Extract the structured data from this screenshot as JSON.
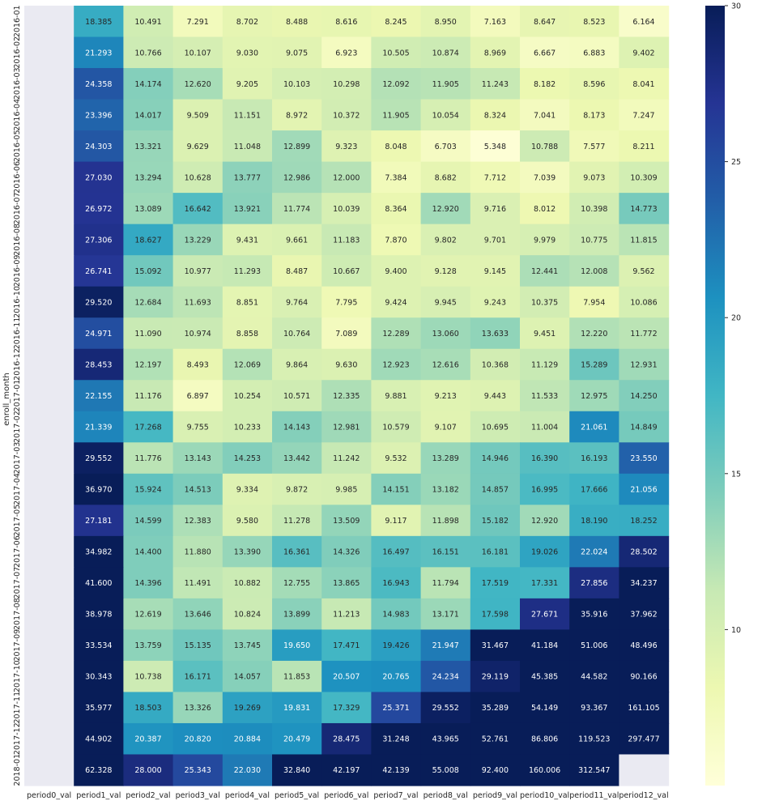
{
  "chart_data": {
    "type": "heatmap",
    "ylabel": "enroll_month",
    "xlabel": "",
    "columns": [
      "period0_val",
      "period1_val",
      "period2_val",
      "period3_val",
      "period4_val",
      "period5_val",
      "period6_val",
      "period7_val",
      "period8_val",
      "period9_val",
      "period10_val",
      "period11_val",
      "period12_val"
    ],
    "rows": [
      "2016-01",
      "2016-02",
      "2016-03",
      "2016-04",
      "2016-05",
      "2016-06",
      "2016-07",
      "2016-08",
      "2016-09",
      "2016-10",
      "2016-11",
      "2016-12",
      "2017-01",
      "2017-02",
      "2017-03",
      "2017-04",
      "2017-05",
      "2017-06",
      "2017-07",
      "2017-08",
      "2017-09",
      "2017-10",
      "2017-11",
      "2017-12",
      "2018-01"
    ],
    "values": [
      [
        null,
        18.385,
        10.491,
        7.291,
        8.702,
        8.488,
        8.616,
        8.245,
        8.95,
        7.163,
        8.647,
        8.523,
        6.164
      ],
      [
        null,
        21.293,
        10.766,
        10.107,
        9.03,
        9.075,
        6.923,
        10.505,
        10.874,
        8.969,
        6.667,
        6.883,
        9.402
      ],
      [
        null,
        24.358,
        14.174,
        12.62,
        9.205,
        10.103,
        10.298,
        12.092,
        11.905,
        11.243,
        8.182,
        8.596,
        8.041
      ],
      [
        null,
        23.396,
        14.017,
        9.509,
        11.151,
        8.972,
        10.372,
        11.905,
        10.054,
        8.324,
        7.041,
        8.173,
        7.247
      ],
      [
        null,
        24.303,
        13.321,
        9.629,
        11.048,
        12.899,
        9.323,
        8.048,
        6.703,
        5.348,
        10.788,
        7.577,
        8.211
      ],
      [
        null,
        27.03,
        13.294,
        10.628,
        13.777,
        12.986,
        12.0,
        7.384,
        8.682,
        7.712,
        7.039,
        9.073,
        10.309
      ],
      [
        null,
        26.972,
        13.089,
        16.642,
        13.921,
        11.774,
        10.039,
        8.364,
        12.92,
        9.716,
        8.012,
        10.398,
        14.773
      ],
      [
        null,
        27.306,
        18.627,
        13.229,
        9.431,
        9.661,
        11.183,
        7.87,
        9.802,
        9.701,
        9.979,
        10.775,
        11.815
      ],
      [
        null,
        26.741,
        15.092,
        10.977,
        11.293,
        8.487,
        10.667,
        9.4,
        9.128,
        9.145,
        12.441,
        12.008,
        9.562
      ],
      [
        null,
        29.52,
        12.684,
        11.693,
        8.851,
        9.764,
        7.795,
        9.424,
        9.945,
        9.243,
        10.375,
        7.954,
        10.086
      ],
      [
        null,
        24.971,
        11.09,
        10.974,
        8.858,
        10.764,
        7.089,
        12.289,
        13.06,
        13.633,
        9.451,
        12.22,
        11.772
      ],
      [
        null,
        28.453,
        12.197,
        8.493,
        12.069,
        9.864,
        9.63,
        12.923,
        12.616,
        10.368,
        11.129,
        15.289,
        12.931
      ],
      [
        null,
        22.155,
        11.176,
        6.897,
        10.254,
        10.571,
        12.335,
        9.881,
        9.213,
        9.443,
        11.533,
        12.975,
        14.25
      ],
      [
        null,
        21.339,
        17.268,
        9.755,
        10.233,
        14.143,
        12.981,
        10.579,
        9.107,
        10.695,
        11.004,
        21.061,
        14.849
      ],
      [
        null,
        29.552,
        11.776,
        13.143,
        14.253,
        13.442,
        11.242,
        9.532,
        13.289,
        14.946,
        16.39,
        16.193,
        23.55
      ],
      [
        null,
        36.97,
        15.924,
        14.513,
        9.334,
        9.872,
        9.985,
        14.151,
        13.182,
        14.857,
        16.995,
        17.666,
        21.056
      ],
      [
        null,
        27.181,
        14.599,
        12.383,
        9.58,
        11.278,
        13.509,
        9.117,
        11.898,
        15.182,
        12.92,
        18.19,
        18.252
      ],
      [
        null,
        34.982,
        14.4,
        11.88,
        13.39,
        16.361,
        14.326,
        16.497,
        16.151,
        16.181,
        19.026,
        22.024,
        28.502
      ],
      [
        null,
        41.6,
        14.396,
        11.491,
        10.882,
        12.755,
        13.865,
        16.943,
        11.794,
        17.519,
        17.331,
        27.856,
        34.237
      ],
      [
        null,
        38.978,
        12.619,
        13.646,
        10.824,
        13.899,
        11.213,
        14.983,
        13.171,
        17.598,
        27.671,
        35.916,
        37.962
      ],
      [
        null,
        33.534,
        13.759,
        15.135,
        13.745,
        19.65,
        17.471,
        19.426,
        21.947,
        31.467,
        41.184,
        51.006,
        48.496
      ],
      [
        null,
        30.343,
        10.738,
        16.171,
        14.057,
        11.853,
        20.507,
        20.765,
        24.234,
        29.119,
        45.385,
        44.582,
        90.166
      ],
      [
        null,
        35.977,
        18.503,
        13.326,
        19.269,
        19.831,
        17.329,
        25.371,
        29.552,
        35.289,
        54.149,
        93.367,
        161.105
      ],
      [
        null,
        44.902,
        20.387,
        20.82,
        20.884,
        20.479,
        28.475,
        31.248,
        43.965,
        52.761,
        86.806,
        119.523,
        297.477
      ],
      [
        null,
        62.328,
        28.0,
        25.343,
        22.03,
        32.84,
        42.197,
        42.139,
        55.008,
        92.4,
        160.006,
        312.547,
        null
      ]
    ],
    "vmin": 5,
    "vmax": 30,
    "colormap": "YlGnBu",
    "missing_color": "#eaeaf2",
    "colorbar_ticks": [
      10,
      15,
      20,
      25,
      30
    ]
  }
}
